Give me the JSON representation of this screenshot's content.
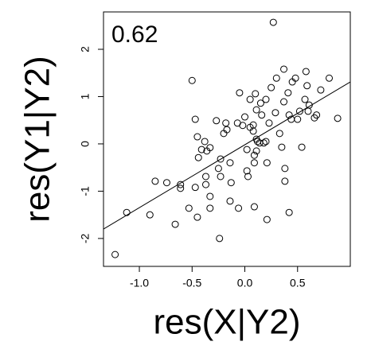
{
  "chart_data": {
    "type": "scatter",
    "annotation": "0.62",
    "x_label": "res(X|Y2)",
    "y_label": "res(Y1|Y2)",
    "xlim": [
      -1.34,
      1.0
    ],
    "ylim": [
      -2.59,
      2.79
    ],
    "xticks": [
      {
        "value": -1.0,
        "label": "-1.0"
      },
      -0.5,
      {
        "value": 0.0,
        "label": "0.0"
      },
      0.5
    ],
    "yticks": [
      -2,
      -1,
      0,
      1,
      2
    ],
    "color": "#000000",
    "fit": {
      "x": [
        -1.34,
        1.0
      ],
      "y": [
        -1.8,
        1.31
      ]
    },
    "series": [
      {
        "x": [
          -1.23,
          -1.12,
          -0.9,
          -0.85,
          -0.74,
          -0.66,
          -0.61,
          -0.61,
          -0.53,
          -0.5,
          -0.47,
          -0.47,
          -0.45,
          -0.44,
          -0.41,
          -0.38,
          -0.36,
          -0.33,
          -0.37,
          -0.33,
          -0.37,
          -0.33,
          -0.45,
          -0.27,
          -0.23,
          -0.25,
          -0.23,
          -0.24,
          -0.18,
          -0.17,
          -0.2,
          -0.14,
          -0.13,
          -0.14,
          -0.07,
          -0.06,
          -0.05,
          -0.02,
          0.0,
          0.02,
          0.02,
          0.03,
          0.05,
          0.05,
          0.08,
          0.08,
          0.09,
          0.09,
          0.1,
          0.11,
          0.12,
          0.11,
          0.11,
          0.15,
          0.16,
          0.14,
          0.18,
          0.2,
          0.2,
          0.21,
          0.21,
          0.09,
          0.23,
          0.25,
          0.27,
          0.29,
          0.3,
          0.33,
          0.35,
          0.37,
          0.38,
          0.38,
          0.41,
          0.42,
          0.42,
          0.44,
          0.45,
          0.48,
          0.5,
          0.52,
          0.54,
          0.57,
          0.59,
          0.58,
          0.6,
          0.61,
          0.66,
          0.68,
          0.72,
          0.8,
          0.88,
          0.37
        ],
        "y": [
          -2.34,
          -1.45,
          -1.5,
          -0.79,
          -0.82,
          -1.7,
          -0.86,
          -0.94,
          -1.36,
          1.34,
          -0.92,
          0.52,
          0.15,
          -0.29,
          -0.12,
          0.05,
          -0.15,
          -0.08,
          -0.69,
          -1.11,
          -0.86,
          -1.36,
          -1.55,
          0.49,
          -0.32,
          -0.52,
          -0.69,
          -2.0,
          0.44,
          0.3,
          0.22,
          -0.4,
          -0.82,
          -1.21,
          0.44,
          -1.36,
          1.08,
          0.39,
          0.57,
          -0.12,
          -0.57,
          -0.69,
          0.94,
          0.35,
          0.27,
          0.4,
          -0.24,
          -0.4,
          1.06,
          0.1,
          0.05,
          -0.15,
          0.72,
          0.86,
          0.61,
          0.02,
          0.02,
          0.05,
          0.94,
          -0.4,
          -1.6,
          -1.33,
          0.44,
          1.19,
          2.57,
          0.66,
          1.39,
          0.22,
          -0.07,
          0.89,
          -0.52,
          -0.79,
          1.08,
          -1.45,
          0.61,
          0.52,
          1.31,
          1.39,
          0.52,
          0.69,
          -0.07,
          0.94,
          1.23,
          1.53,
          0.69,
          0.82,
          0.55,
          0.61,
          1.14,
          1.39,
          0.54,
          1.58
        ]
      }
    ]
  }
}
